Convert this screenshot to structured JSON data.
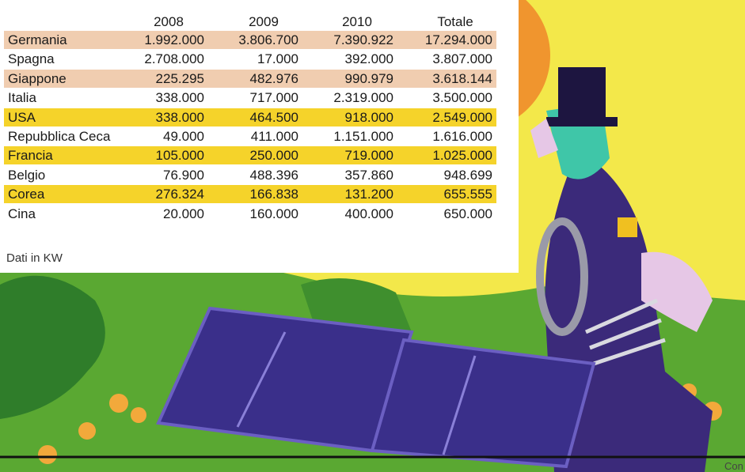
{
  "table": {
    "header": [
      "2008",
      "2009",
      "2010",
      "Totale"
    ],
    "rows": [
      [
        "Germania",
        "1.992.000",
        "3.806.700",
        "7.390.922",
        "17.294.000"
      ],
      [
        "Spagna",
        "2.708.000",
        "17.000",
        "392.000",
        "3.807.000"
      ],
      [
        "Giappone",
        "225.295",
        "482.976",
        "990.979",
        "3.618.144"
      ],
      [
        "Italia",
        "338.000",
        "717.000",
        "2.319.000",
        "3.500.000"
      ],
      [
        "USA",
        "338.000",
        "464.500",
        "918.000",
        "2.549.000"
      ],
      [
        "Repubblica Ceca",
        "49.000",
        "411.000",
        "1.151.000",
        "1.616.000"
      ],
      [
        "Francia",
        "105.000",
        "250.000",
        "719.000",
        "1.025.000"
      ],
      [
        "Belgio",
        "76.900",
        "488.396",
        "357.860",
        "948.699"
      ],
      [
        "Corea",
        "276.324",
        "166.838",
        "131.200",
        "655.555"
      ],
      [
        "Cina",
        "20.000",
        "160.000",
        "400.000",
        "650.000"
      ]
    ]
  },
  "note": "Dati in KW",
  "corner_text": "Con"
}
